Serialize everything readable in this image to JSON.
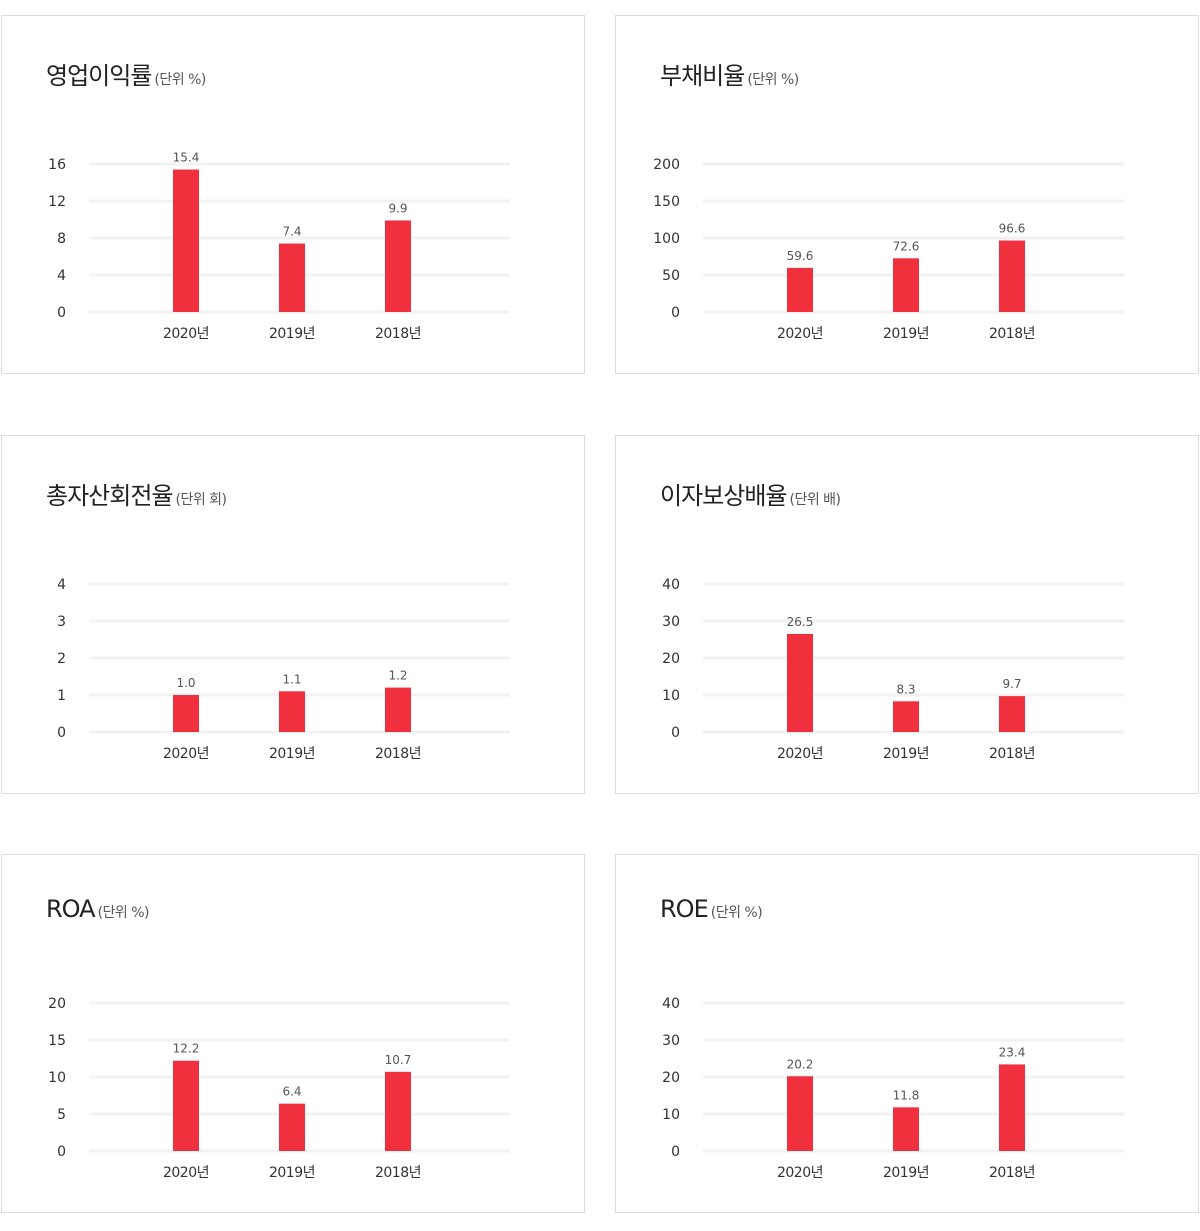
{
  "colors": {
    "bar": "#f0303c",
    "grid": "#f2f2f2",
    "border": "#dcdcdc"
  },
  "chart_data": [
    {
      "type": "bar",
      "title": "영업이익률",
      "unit": "(단위 %)",
      "categories": [
        "2020년",
        "2019년",
        "2018년"
      ],
      "values": [
        15.4,
        7.4,
        9.9
      ],
      "value_labels": [
        "15.4",
        "7.4",
        "9.9"
      ],
      "yticks": [
        0,
        4,
        8,
        12,
        16
      ],
      "ylim": [
        0,
        16
      ]
    },
    {
      "type": "bar",
      "title": "부채비율",
      "unit": "(단위 %)",
      "categories": [
        "2020년",
        "2019년",
        "2018년"
      ],
      "values": [
        59.6,
        72.6,
        96.6
      ],
      "value_labels": [
        "59.6",
        "72.6",
        "96.6"
      ],
      "yticks": [
        0,
        50,
        100,
        150,
        200
      ],
      "ylim": [
        0,
        200
      ]
    },
    {
      "type": "bar",
      "title": "총자산회전율",
      "unit": "(단위 회)",
      "categories": [
        "2020년",
        "2019년",
        "2018년"
      ],
      "values": [
        1.0,
        1.1,
        1.2
      ],
      "value_labels": [
        "1.0",
        "1.1",
        "1.2"
      ],
      "yticks": [
        0,
        1,
        2,
        3,
        4
      ],
      "ylim": [
        0,
        4
      ]
    },
    {
      "type": "bar",
      "title": "이자보상배율",
      "unit": "(단위 배)",
      "categories": [
        "2020년",
        "2019년",
        "2018년"
      ],
      "values": [
        26.5,
        8.3,
        9.7
      ],
      "value_labels": [
        "26.5",
        "8.3",
        "9.7"
      ],
      "yticks": [
        0,
        10,
        20,
        30,
        40
      ],
      "ylim": [
        0,
        40
      ]
    },
    {
      "type": "bar",
      "title": "ROA",
      "unit": "(단위 %)",
      "categories": [
        "2020년",
        "2019년",
        "2018년"
      ],
      "values": [
        12.2,
        6.4,
        10.7
      ],
      "value_labels": [
        "12.2",
        "6.4",
        "10.7"
      ],
      "yticks": [
        0,
        5,
        10,
        15,
        20
      ],
      "ylim": [
        0,
        20
      ]
    },
    {
      "type": "bar",
      "title": "ROE",
      "unit": "(단위 %)",
      "categories": [
        "2020년",
        "2019년",
        "2018년"
      ],
      "values": [
        20.2,
        11.8,
        23.4
      ],
      "value_labels": [
        "20.2",
        "11.8",
        "23.4"
      ],
      "yticks": [
        0,
        10,
        20,
        30,
        40
      ],
      "ylim": [
        0,
        40
      ]
    }
  ]
}
